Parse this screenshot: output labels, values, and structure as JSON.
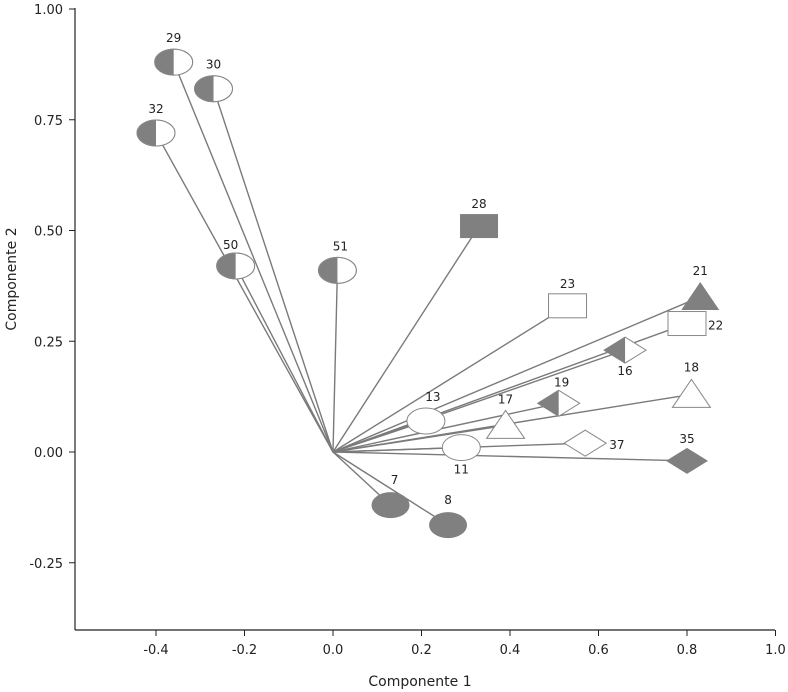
{
  "chart_data": {
    "type": "scatter",
    "title": "",
    "xlabel": "Componente 1",
    "ylabel": "Componente 2",
    "xlim": [
      -0.58,
      1.0
    ],
    "ylim": [
      -0.4,
      1.0
    ],
    "x_ticks": [
      -0.4,
      -0.2,
      0.0,
      0.2,
      0.4,
      0.6,
      0.8,
      1.0
    ],
    "x_tick_labels": [
      "-0.4",
      "-0.2",
      "0.0",
      "0.2",
      "0.4",
      "0.6",
      "0.8",
      "1.0"
    ],
    "y_ticks": [
      -0.25,
      0.0,
      0.25,
      0.5,
      0.75,
      1.0
    ],
    "y_tick_labels": [
      "-0.25",
      "0.00",
      "0.25",
      "0.50",
      "0.75",
      "1.00"
    ],
    "grid": false,
    "legend": "none",
    "origin": [
      0,
      0
    ],
    "colors": {
      "fill": "#808080",
      "line": "#7a7a7a",
      "axis": "#222222",
      "open": "#ffffff"
    },
    "points": [
      {
        "label": "29",
        "x": -0.36,
        "y": 0.88,
        "marker": "half-circle"
      },
      {
        "label": "30",
        "x": -0.27,
        "y": 0.82,
        "marker": "half-circle"
      },
      {
        "label": "32",
        "x": -0.4,
        "y": 0.72,
        "marker": "half-circle"
      },
      {
        "label": "50",
        "x": -0.22,
        "y": 0.42,
        "marker": "half-circle"
      },
      {
        "label": "51",
        "x": 0.01,
        "y": 0.41,
        "marker": "half-circle"
      },
      {
        "label": "28",
        "x": 0.33,
        "y": 0.51,
        "marker": "filled-square"
      },
      {
        "label": "23",
        "x": 0.53,
        "y": 0.33,
        "marker": "open-square"
      },
      {
        "label": "21",
        "x": 0.83,
        "y": 0.35,
        "marker": "filled-triangle"
      },
      {
        "label": "22",
        "x": 0.8,
        "y": 0.29,
        "marker": "open-square"
      },
      {
        "label": "16",
        "x": 0.66,
        "y": 0.23,
        "marker": "half-diamond"
      },
      {
        "label": "19",
        "x": 0.51,
        "y": 0.11,
        "marker": "half-diamond"
      },
      {
        "label": "18",
        "x": 0.81,
        "y": 0.13,
        "marker": "open-triangle"
      },
      {
        "label": "13",
        "x": 0.21,
        "y": 0.07,
        "marker": "open-circle"
      },
      {
        "label": "17",
        "x": 0.39,
        "y": 0.06,
        "marker": "open-triangle"
      },
      {
        "label": "11",
        "x": 0.29,
        "y": 0.01,
        "marker": "open-circle"
      },
      {
        "label": "37",
        "x": 0.57,
        "y": 0.02,
        "marker": "open-diamond"
      },
      {
        "label": "35",
        "x": 0.8,
        "y": -0.02,
        "marker": "filled-diamond"
      },
      {
        "label": "7",
        "x": 0.13,
        "y": -0.12,
        "marker": "filled-circle"
      },
      {
        "label": "8",
        "x": 0.26,
        "y": -0.165,
        "marker": "filled-circle"
      }
    ]
  }
}
